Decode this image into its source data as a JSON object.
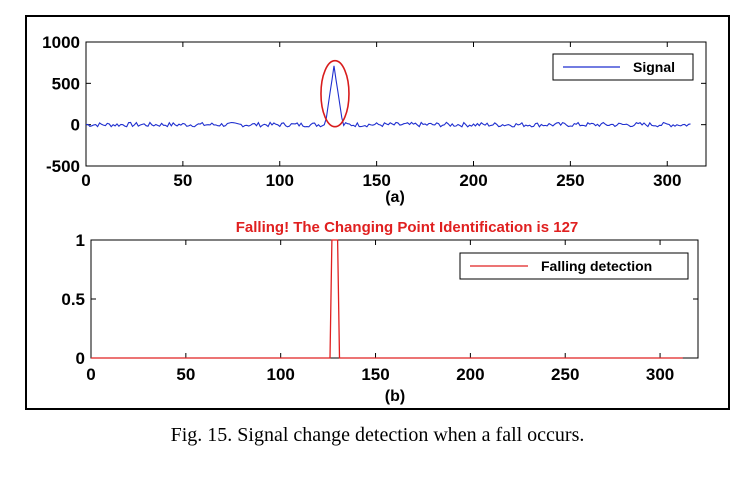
{
  "caption": "Fig. 15. Signal change detection when a fall occurs.",
  "colors": {
    "signal": "#1f2fcf",
    "detection": "#e02020",
    "highlight": "#d81c1c"
  },
  "chart_data": [
    {
      "type": "line",
      "panel_label": "(a)",
      "xlim": [
        0,
        320
      ],
      "ylim": [
        -500,
        1000
      ],
      "xticks": [
        0,
        50,
        100,
        150,
        200,
        250,
        300
      ],
      "yticks": [
        -500,
        0,
        500,
        1000
      ],
      "legend_placement": "top-right",
      "series": [
        {
          "name": "Signal",
          "peak_x": 128,
          "peak_y": 720,
          "x_end": 312,
          "baseline": 0
        }
      ],
      "annotation": "ellipse around peak"
    },
    {
      "type": "line",
      "panel_label": "(b)",
      "title": "Falling! The Changing Point Identification is 127",
      "xlim": [
        0,
        320
      ],
      "ylim": [
        0,
        1
      ],
      "xticks": [
        0,
        50,
        100,
        150,
        200,
        250,
        300
      ],
      "yticks": [
        0,
        0.5,
        1
      ],
      "legend_placement": "top-right",
      "series": [
        {
          "name": "Falling detection",
          "x_end": 312,
          "pulse": [
            [
              0,
              0
            ],
            [
              126,
              0
            ],
            [
              127,
              1
            ],
            [
              130,
              1
            ],
            [
              131,
              0
            ],
            [
              312,
              0
            ]
          ]
        }
      ]
    }
  ]
}
